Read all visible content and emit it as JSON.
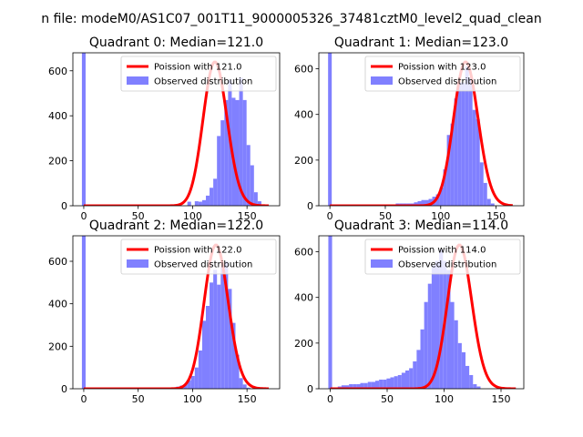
{
  "figure": {
    "suptitle": "n file: modeM0/AS1C07_001T11_9000005326_37481cztM0_level2_quad_clean"
  },
  "colors": {
    "histogram": "#8080ff",
    "poisson_line": "#ff0000",
    "poisson_line_faded": "#ff8080"
  },
  "chart_data": [
    {
      "type": "bar",
      "title": "Quadrant 0: Median=121.0",
      "median": 121.0,
      "xlim": [
        -10,
        180
      ],
      "ylim": [
        0,
        680
      ],
      "xticks": [
        0,
        50,
        100,
        150
      ],
      "yticks": [
        0,
        200,
        400,
        600
      ],
      "legend": {
        "position": "top-right",
        "entries": [
          "Poission with 121.0",
          "Observed distribution"
        ]
      },
      "series": [
        {
          "name": "Poission with 121.0",
          "kind": "line",
          "lambda": 121.0,
          "x_range": [
            0,
            170
          ]
        },
        {
          "name": "Observed distribution",
          "kind": "histogram",
          "spike": {
            "x": 0,
            "value": 680
          },
          "bin_width": 3.4,
          "bin_edges_start": 0,
          "values": [
            0,
            0,
            0,
            0,
            0,
            0,
            0,
            0,
            0,
            0,
            0,
            0,
            0,
            0,
            0,
            0,
            0,
            0,
            0,
            0,
            0,
            0,
            0,
            0,
            0,
            0,
            0,
            0,
            18,
            0,
            20,
            18,
            25,
            45,
            80,
            120,
            310,
            380,
            470,
            560,
            480,
            470,
            570,
            470,
            270,
            180,
            60,
            20,
            0,
            0
          ]
        }
      ]
    },
    {
      "type": "bar",
      "title": "Quadrant 1: Median=123.0",
      "median": 123.0,
      "xlim": [
        -10,
        175
      ],
      "ylim": [
        0,
        670
      ],
      "xticks": [
        0,
        50,
        100,
        150
      ],
      "yticks": [
        0,
        200,
        400,
        600
      ],
      "legend": {
        "position": "top-right",
        "entries": [
          "Poission with 123.0",
          "Observed distribution"
        ]
      },
      "series": [
        {
          "name": "Poission with 123.0",
          "kind": "line",
          "lambda": 123.0,
          "x_range": [
            0,
            165
          ]
        },
        {
          "name": "Observed distribution",
          "kind": "histogram",
          "spike": {
            "x": 0,
            "value": 670
          },
          "bin_width": 3.3,
          "bin_edges_start": 0,
          "values": [
            0,
            0,
            0,
            0,
            5,
            5,
            5,
            5,
            5,
            5,
            5,
            5,
            5,
            5,
            5,
            5,
            5,
            5,
            10,
            10,
            10,
            10,
            10,
            15,
            20,
            25,
            25,
            30,
            40,
            50,
            80,
            160,
            310,
            360,
            470,
            540,
            540,
            610,
            560,
            420,
            380,
            190,
            100,
            30,
            10,
            0,
            0,
            0,
            0,
            0
          ]
        }
      ]
    },
    {
      "type": "bar",
      "title": "Quadrant 2: Median=122.0",
      "median": 122.0,
      "xlim": [
        -10,
        180
      ],
      "ylim": [
        0,
        720
      ],
      "xticks": [
        0,
        50,
        100,
        150
      ],
      "yticks": [
        0,
        200,
        400,
        600
      ],
      "legend": {
        "position": "top-right",
        "entries": [
          "Poission with 122.0",
          "Observed distribution"
        ]
      },
      "series": [
        {
          "name": "Poission with 122.0",
          "kind": "line",
          "lambda": 122.0,
          "x_range": [
            0,
            170
          ]
        },
        {
          "name": "Observed distribution",
          "kind": "histogram",
          "spike": {
            "x": 0,
            "value": 720
          },
          "bin_width": 3.4,
          "bin_edges_start": 0,
          "values": [
            0,
            0,
            0,
            0,
            0,
            0,
            0,
            0,
            0,
            0,
            0,
            0,
            0,
            0,
            0,
            0,
            0,
            0,
            0,
            0,
            0,
            5,
            5,
            5,
            5,
            10,
            15,
            20,
            40,
            60,
            100,
            180,
            320,
            390,
            500,
            560,
            490,
            580,
            600,
            470,
            310,
            160,
            50,
            20,
            5,
            0,
            0,
            0,
            0,
            0
          ]
        }
      ]
    },
    {
      "type": "bar",
      "title": "Quadrant 3: Median=114.0",
      "median": 114.0,
      "xlim": [
        -10,
        170
      ],
      "ylim": [
        0,
        670
      ],
      "xticks": [
        0,
        50,
        100,
        150
      ],
      "yticks": [
        0,
        200,
        400,
        600
      ],
      "legend": {
        "position": "top-right",
        "entries": [
          "Poission with 114.0",
          "Observed distribution"
        ]
      },
      "series": [
        {
          "name": "Poission with 114.0",
          "kind": "line",
          "lambda": 114.0,
          "x_range": [
            0,
            163
          ]
        },
        {
          "name": "Observed distribution",
          "kind": "histogram",
          "spike": {
            "x": 0,
            "value": 670
          },
          "bin_width": 3.3,
          "bin_edges_start": 0,
          "values": [
            0,
            0,
            10,
            15,
            15,
            20,
            20,
            20,
            25,
            25,
            30,
            30,
            35,
            40,
            40,
            45,
            50,
            55,
            60,
            70,
            80,
            90,
            120,
            170,
            260,
            380,
            460,
            540,
            560,
            610,
            560,
            520,
            380,
            300,
            200,
            160,
            100,
            60,
            20,
            10,
            0,
            0,
            0,
            0,
            0,
            0,
            0,
            0,
            0,
            0
          ]
        }
      ]
    }
  ]
}
